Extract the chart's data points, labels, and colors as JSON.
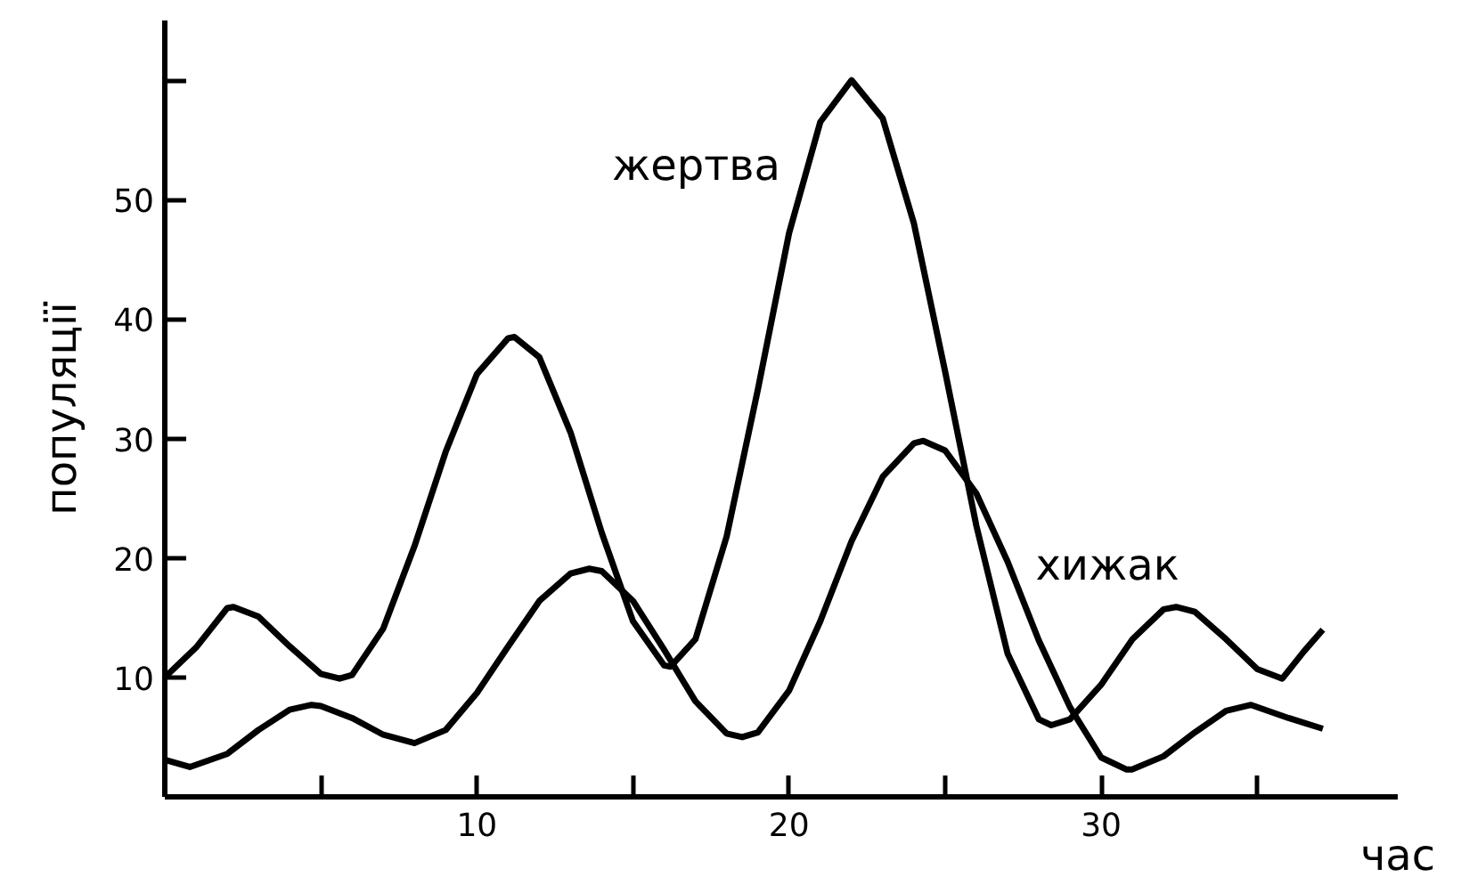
{
  "chart_data": {
    "type": "line",
    "xlabel": "час",
    "ylabel": "популяції",
    "xlim": [
      0,
      39.5
    ],
    "ylim": [
      0,
      65
    ],
    "xticks": [
      {
        "value": 5,
        "label": null
      },
      10,
      {
        "value": 15,
        "label": null
      },
      20,
      {
        "value": 25,
        "label": null
      },
      30,
      {
        "value": 35,
        "label": null
      }
    ],
    "yticks": [
      10,
      20,
      30,
      40,
      50,
      {
        "value": 60,
        "label": null
      }
    ],
    "grid": false,
    "marker": "none",
    "line_style": "solid",
    "series": [
      {
        "name": "жертва",
        "color": "#000000",
        "x": [
          0,
          1,
          2,
          2.2,
          3,
          4,
          5,
          5.6,
          6,
          7,
          8,
          9,
          10,
          11,
          11.2,
          12,
          13,
          14,
          15,
          16,
          16.2,
          17,
          18,
          19,
          20,
          21,
          22,
          23,
          24,
          25,
          26,
          27,
          28,
          28.4,
          29,
          30,
          31,
          32,
          32.4,
          33,
          34,
          35,
          35.8,
          36.5,
          37.1
        ],
        "values": [
          10,
          12.5,
          15.8,
          15.9,
          15.1,
          12.6,
          10.3,
          9.9,
          10.2,
          14.1,
          21.0,
          28.9,
          35.4,
          38.4,
          38.5,
          36.8,
          30.5,
          22.1,
          14.7,
          11.0,
          10.9,
          13.2,
          21.8,
          34.1,
          47.2,
          56.5,
          60,
          56.8,
          48.0,
          35.6,
          22.7,
          12.0,
          6.5,
          6,
          6.5,
          9.4,
          13.2,
          15.7,
          15.9,
          15.5,
          13.2,
          10.7,
          9.9,
          12.2,
          14
        ]
      },
      {
        "name": "хижак",
        "color": "#000000",
        "x": [
          0,
          0.8,
          2,
          3,
          4,
          4.7,
          5,
          6,
          7,
          8,
          9,
          10,
          11,
          12,
          13,
          13.6,
          14,
          15,
          16,
          17,
          18,
          18.5,
          19,
          20,
          21,
          22,
          23,
          24,
          24.3,
          25,
          26,
          27,
          28,
          29,
          30,
          30.8,
          31,
          32,
          33,
          34,
          34.8,
          36,
          37.1
        ],
        "values": [
          3.1,
          2.5,
          3.6,
          5.6,
          7.3,
          7.7,
          7.6,
          6.6,
          5.2,
          4.5,
          5.6,
          8.7,
          12.6,
          16.4,
          18.7,
          19.1,
          18.9,
          16.4,
          12.3,
          8.0,
          5.3,
          5,
          5.4,
          8.9,
          14.7,
          21.4,
          26.8,
          29.6,
          29.8,
          29.0,
          25.4,
          19.7,
          13.1,
          7.5,
          3.3,
          2.3,
          2.3,
          3.4,
          5.4,
          7.2,
          7.7,
          6.6,
          5.7
        ]
      }
    ]
  }
}
